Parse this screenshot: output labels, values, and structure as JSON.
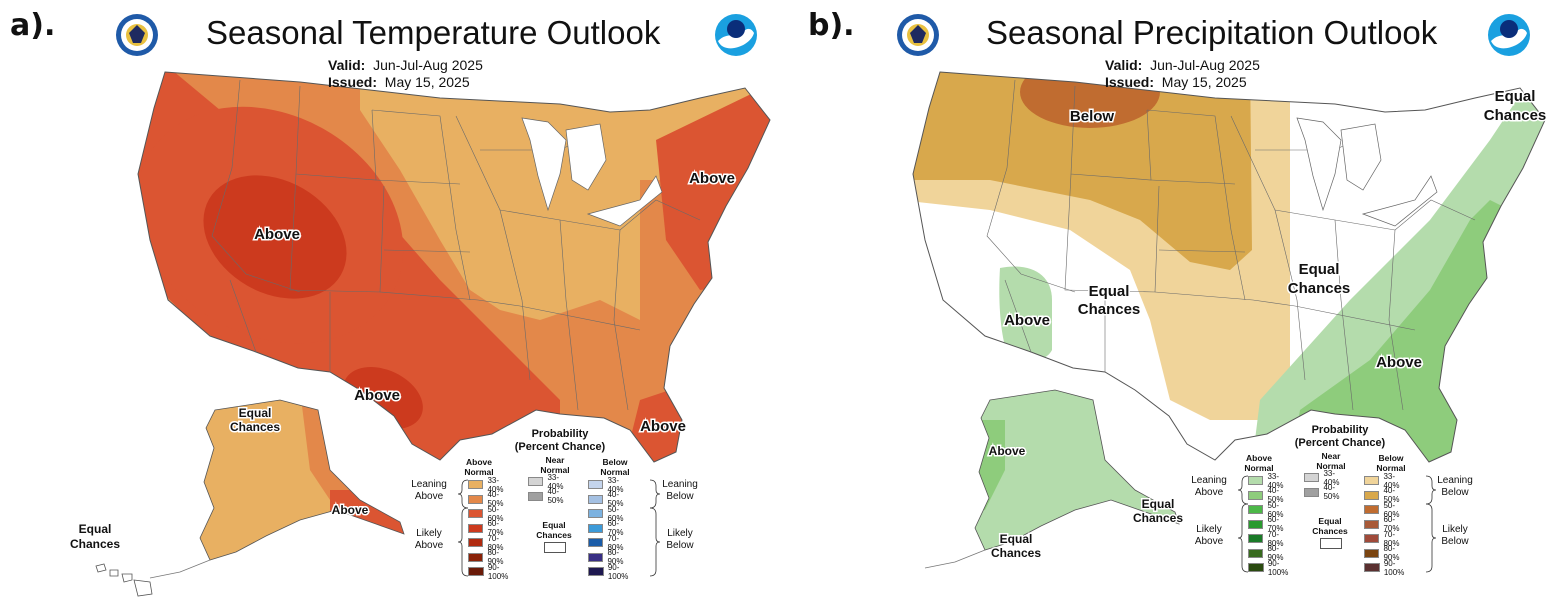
{
  "panel_a": {
    "letter": "a).",
    "title": "Seasonal Temperature Outlook",
    "valid_label": "Valid:",
    "valid_value": "Jun-Jul-Aug 2025",
    "issued_label": "Issued:",
    "issued_value": "May 15, 2025",
    "map_labels": {
      "west": "Above",
      "northeast": "Above",
      "texas": "Above",
      "florida": "Above",
      "alaska_ec_1": "Equal",
      "alaska_ec_2": "Chances",
      "alaska_south": "Above",
      "hawaii_ec_1": "Equal",
      "hawaii_ec_2": "Chances"
    },
    "legend": {
      "title_1": "Probability",
      "title_2": "(Percent Chance)",
      "col_above_1": "Above",
      "col_above_2": "Normal",
      "col_near_1": "Near",
      "col_near_2": "Normal",
      "col_below_1": "Below",
      "col_below_2": "Normal",
      "leaning_above_1": "Leaning",
      "leaning_above_2": "Above",
      "likely_above_1": "Likely",
      "likely_above_2": "Above",
      "leaning_below_1": "Leaning",
      "leaning_below_2": "Below",
      "likely_below_1": "Likely",
      "likely_below_2": "Below",
      "ec_1": "Equal",
      "ec_2": "Chances",
      "above_ranges": [
        "33-40%",
        "40-50%",
        "50-60%",
        "60-70%",
        "70-80%",
        "80-90%",
        "90-100%"
      ],
      "near_ranges": [
        "33-40%",
        "40-50%"
      ],
      "below_ranges": [
        "33-40%",
        "40-50%",
        "50-60%",
        "60-70%",
        "70-80%",
        "80-90%",
        "90-100%"
      ],
      "above_colors": [
        "#e8b062",
        "#e3884a",
        "#db5532",
        "#cc3a1e",
        "#b02a10",
        "#8a2208",
        "#6a1a08"
      ],
      "near_colors": [
        "#d4d4d4",
        "#a0a0a0"
      ],
      "below_colors": [
        "#c4d4ec",
        "#a4c0e2",
        "#7cb2e0",
        "#3c9ad8",
        "#1a5ca8",
        "#382e84",
        "#1e1850"
      ]
    }
  },
  "panel_b": {
    "letter": "b).",
    "title": "Seasonal Precipitation Outlook",
    "valid_label": "Valid:",
    "valid_value": "Jun-Jul-Aug 2025",
    "issued_label": "Issued:",
    "issued_value": "May 15, 2025",
    "map_labels": {
      "north_below": "Below",
      "ne_ec_1": "Equal",
      "ne_ec_2": "Chances",
      "central_ec_1": "Equal",
      "central_ec_2": "Chances",
      "sw_ec_1": "Equal",
      "sw_ec_2": "Chances",
      "sw_above": "Above",
      "se_above": "Above",
      "alaska_above": "Above",
      "alaska_ec_1": "Equal",
      "alaska_ec_2": "Chances",
      "hawaii_ec_1": "Equal",
      "hawaii_ec_2": "Chances"
    },
    "legend": {
      "title_1": "Probability",
      "title_2": "(Percent Chance)",
      "col_above_1": "Above",
      "col_above_2": "Normal",
      "col_near_1": "Near",
      "col_near_2": "Normal",
      "col_below_1": "Below",
      "col_below_2": "Normal",
      "leaning_above_1": "Leaning",
      "leaning_above_2": "Above",
      "likely_above_1": "Likely",
      "likely_above_2": "Above",
      "leaning_below_1": "Leaning",
      "leaning_below_2": "Below",
      "likely_below_1": "Likely",
      "likely_below_2": "Below",
      "ec_1": "Equal",
      "ec_2": "Chances",
      "above_ranges": [
        "33-40%",
        "40-50%",
        "50-60%",
        "60-70%",
        "70-80%",
        "80-90%",
        "90-100%"
      ],
      "near_ranges": [
        "33-40%",
        "40-50%"
      ],
      "below_ranges": [
        "33-40%",
        "40-50%",
        "50-60%",
        "60-70%",
        "70-80%",
        "80-90%",
        "90-100%"
      ],
      "above_colors": [
        "#b4dcac",
        "#8ecc7c",
        "#4cb848",
        "#2a9a30",
        "#1a7a28",
        "#386a1e",
        "#2a4a10"
      ],
      "near_colors": [
        "#d4d4d4",
        "#a0a0a0"
      ],
      "below_colors": [
        "#f0d49a",
        "#d8a84c",
        "#c06c30",
        "#a85a38",
        "#a04a3a",
        "#7a4410",
        "#5a3030"
      ]
    }
  }
}
